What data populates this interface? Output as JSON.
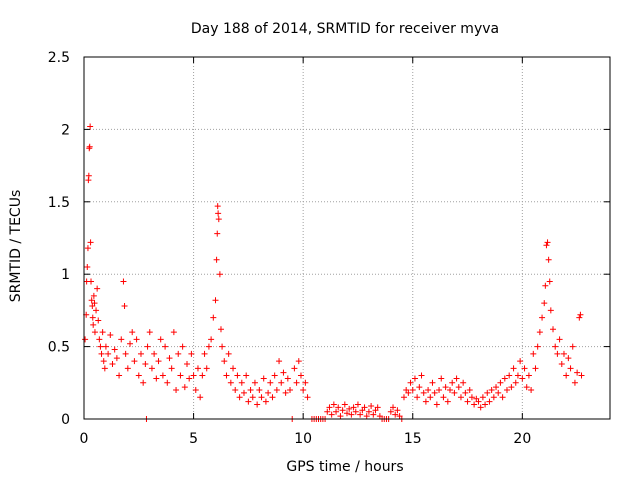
{
  "chart_data": {
    "type": "scatter",
    "title": "Day 188 of 2014, SRMTID for receiver myva",
    "xlabel": "GPS time / hours",
    "ylabel": "SRMTID / TECUs",
    "xlim": [
      0,
      24
    ],
    "ylim": [
      0,
      2.5
    ],
    "xticks": [
      0,
      5,
      10,
      15,
      20
    ],
    "xtick_labels": [
      "0",
      "5",
      "10",
      "15",
      "20"
    ],
    "yticks": [
      0,
      0.5,
      1,
      1.5,
      2,
      2.5
    ],
    "ytick_labels": [
      "0",
      "0.5",
      "1",
      "1.5",
      "2",
      "2.5"
    ],
    "grid": true,
    "marker": "+",
    "series": [
      {
        "name": "SRMTID",
        "color": "#ff0000",
        "data": [
          [
            0.05,
            0.55
          ],
          [
            0.1,
            0.72
          ],
          [
            0.12,
            0.95
          ],
          [
            0.15,
            1.05
          ],
          [
            0.18,
            1.18
          ],
          [
            0.2,
            1.65
          ],
          [
            0.22,
            1.68
          ],
          [
            0.24,
            1.87
          ],
          [
            0.26,
            1.88
          ],
          [
            0.28,
            2.02
          ],
          [
            0.3,
            1.22
          ],
          [
            0.32,
            0.95
          ],
          [
            0.35,
            0.82
          ],
          [
            0.38,
            0.78
          ],
          [
            0.4,
            0.7
          ],
          [
            0.42,
            0.65
          ],
          [
            0.45,
            0.85
          ],
          [
            0.48,
            0.8
          ],
          [
            0.5,
            0.6
          ],
          [
            0.55,
            0.75
          ],
          [
            0.6,
            0.9
          ],
          [
            0.65,
            0.68
          ],
          [
            0.7,
            0.55
          ],
          [
            0.75,
            0.5
          ],
          [
            0.8,
            0.45
          ],
          [
            0.85,
            0.6
          ],
          [
            0.9,
            0.4
          ],
          [
            0.95,
            0.35
          ],
          [
            1.0,
            0.5
          ],
          [
            1.1,
            0.45
          ],
          [
            1.2,
            0.58
          ],
          [
            1.3,
            0.38
          ],
          [
            1.4,
            0.48
          ],
          [
            1.5,
            0.42
          ],
          [
            1.6,
            0.3
          ],
          [
            1.7,
            0.55
          ],
          [
            1.8,
            0.95
          ],
          [
            1.85,
            0.78
          ],
          [
            1.9,
            0.45
          ],
          [
            2.0,
            0.35
          ],
          [
            2.1,
            0.52
          ],
          [
            2.2,
            0.6
          ],
          [
            2.3,
            0.4
          ],
          [
            2.4,
            0.55
          ],
          [
            2.5,
            0.3
          ],
          [
            2.6,
            0.45
          ],
          [
            2.7,
            0.25
          ],
          [
            2.8,
            0.38
          ],
          [
            2.85,
            0.0
          ],
          [
            2.9,
            0.5
          ],
          [
            3.0,
            0.6
          ],
          [
            3.1,
            0.35
          ],
          [
            3.2,
            0.45
          ],
          [
            3.3,
            0.28
          ],
          [
            3.4,
            0.4
          ],
          [
            3.5,
            0.55
          ],
          [
            3.6,
            0.3
          ],
          [
            3.7,
            0.5
          ],
          [
            3.8,
            0.25
          ],
          [
            3.9,
            0.42
          ],
          [
            4.0,
            0.35
          ],
          [
            4.1,
            0.6
          ],
          [
            4.2,
            0.2
          ],
          [
            4.3,
            0.45
          ],
          [
            4.4,
            0.3
          ],
          [
            4.5,
            0.5
          ],
          [
            4.6,
            0.22
          ],
          [
            4.7,
            0.38
          ],
          [
            4.8,
            0.28
          ],
          [
            4.9,
            0.45
          ],
          [
            5.0,
            0.3
          ],
          [
            5.1,
            0.2
          ],
          [
            5.2,
            0.35
          ],
          [
            5.3,
            0.15
          ],
          [
            5.4,
            0.3
          ],
          [
            5.5,
            0.45
          ],
          [
            5.6,
            0.35
          ],
          [
            5.7,
            0.5
          ],
          [
            5.8,
            0.55
          ],
          [
            5.9,
            0.7
          ],
          [
            6.0,
            0.82
          ],
          [
            6.05,
            1.1
          ],
          [
            6.08,
            1.28
          ],
          [
            6.1,
            1.47
          ],
          [
            6.12,
            1.42
          ],
          [
            6.15,
            1.38
          ],
          [
            6.2,
            1.0
          ],
          [
            6.25,
            0.62
          ],
          [
            6.3,
            0.5
          ],
          [
            6.4,
            0.4
          ],
          [
            6.5,
            0.3
          ],
          [
            6.6,
            0.45
          ],
          [
            6.7,
            0.25
          ],
          [
            6.8,
            0.35
          ],
          [
            6.9,
            0.2
          ],
          [
            7.0,
            0.3
          ],
          [
            7.1,
            0.15
          ],
          [
            7.2,
            0.25
          ],
          [
            7.3,
            0.18
          ],
          [
            7.4,
            0.3
          ],
          [
            7.5,
            0.12
          ],
          [
            7.6,
            0.2
          ],
          [
            7.7,
            0.15
          ],
          [
            7.8,
            0.25
          ],
          [
            7.9,
            0.1
          ],
          [
            8.0,
            0.2
          ],
          [
            8.1,
            0.15
          ],
          [
            8.2,
            0.28
          ],
          [
            8.3,
            0.12
          ],
          [
            8.4,
            0.18
          ],
          [
            8.5,
            0.25
          ],
          [
            8.6,
            0.15
          ],
          [
            8.7,
            0.3
          ],
          [
            8.8,
            0.2
          ],
          [
            8.9,
            0.4
          ],
          [
            9.0,
            0.25
          ],
          [
            9.1,
            0.32
          ],
          [
            9.2,
            0.18
          ],
          [
            9.3,
            0.28
          ],
          [
            9.4,
            0.2
          ],
          [
            9.5,
            0.0
          ],
          [
            9.6,
            0.35
          ],
          [
            9.7,
            0.25
          ],
          [
            9.8,
            0.4
          ],
          [
            9.9,
            0.3
          ],
          [
            10.0,
            0.2
          ],
          [
            10.1,
            0.25
          ],
          [
            10.2,
            0.15
          ],
          [
            10.4,
            0.0
          ],
          [
            10.5,
            0.0
          ],
          [
            10.6,
            0.0
          ],
          [
            10.7,
            0.0
          ],
          [
            10.8,
            0.0
          ],
          [
            10.9,
            0.0
          ],
          [
            11.0,
            0.0
          ],
          [
            11.1,
            0.05
          ],
          [
            11.2,
            0.08
          ],
          [
            11.3,
            0.03
          ],
          [
            11.4,
            0.1
          ],
          [
            11.5,
            0.05
          ],
          [
            11.6,
            0.08
          ],
          [
            11.7,
            0.02
          ],
          [
            11.8,
            0.06
          ],
          [
            11.9,
            0.1
          ],
          [
            12.0,
            0.04
          ],
          [
            12.1,
            0.07
          ],
          [
            12.2,
            0.03
          ],
          [
            12.3,
            0.08
          ],
          [
            12.4,
            0.05
          ],
          [
            12.5,
            0.1
          ],
          [
            12.6,
            0.03
          ],
          [
            12.7,
            0.06
          ],
          [
            12.8,
            0.08
          ],
          [
            12.9,
            0.02
          ],
          [
            13.0,
            0.05
          ],
          [
            13.1,
            0.09
          ],
          [
            13.2,
            0.03
          ],
          [
            13.3,
            0.06
          ],
          [
            13.4,
            0.08
          ],
          [
            13.5,
            0.02
          ],
          [
            13.6,
            0.0
          ],
          [
            13.7,
            0.0
          ],
          [
            13.8,
            0.0
          ],
          [
            13.9,
            0.0
          ],
          [
            14.0,
            0.05
          ],
          [
            14.1,
            0.08
          ],
          [
            14.2,
            0.03
          ],
          [
            14.3,
            0.06
          ],
          [
            14.4,
            0.02
          ],
          [
            14.5,
            0.0
          ],
          [
            14.6,
            0.15
          ],
          [
            14.7,
            0.2
          ],
          [
            14.8,
            0.18
          ],
          [
            14.9,
            0.25
          ],
          [
            15.0,
            0.2
          ],
          [
            15.1,
            0.28
          ],
          [
            15.2,
            0.15
          ],
          [
            15.3,
            0.22
          ],
          [
            15.4,
            0.3
          ],
          [
            15.5,
            0.18
          ],
          [
            15.6,
            0.12
          ],
          [
            15.7,
            0.2
          ],
          [
            15.8,
            0.15
          ],
          [
            15.9,
            0.25
          ],
          [
            16.0,
            0.18
          ],
          [
            16.1,
            0.1
          ],
          [
            16.2,
            0.2
          ],
          [
            16.3,
            0.28
          ],
          [
            16.4,
            0.15
          ],
          [
            16.5,
            0.22
          ],
          [
            16.6,
            0.12
          ],
          [
            16.7,
            0.2
          ],
          [
            16.8,
            0.25
          ],
          [
            16.9,
            0.18
          ],
          [
            17.0,
            0.28
          ],
          [
            17.1,
            0.22
          ],
          [
            17.2,
            0.15
          ],
          [
            17.3,
            0.25
          ],
          [
            17.4,
            0.18
          ],
          [
            17.5,
            0.12
          ],
          [
            17.6,
            0.2
          ],
          [
            17.7,
            0.15
          ],
          [
            17.8,
            0.1
          ],
          [
            17.9,
            0.14
          ],
          [
            18.0,
            0.12
          ],
          [
            18.1,
            0.08
          ],
          [
            18.2,
            0.15
          ],
          [
            18.3,
            0.1
          ],
          [
            18.4,
            0.18
          ],
          [
            18.5,
            0.12
          ],
          [
            18.6,
            0.2
          ],
          [
            18.7,
            0.15
          ],
          [
            18.8,
            0.22
          ],
          [
            18.9,
            0.18
          ],
          [
            19.0,
            0.25
          ],
          [
            19.1,
            0.15
          ],
          [
            19.2,
            0.28
          ],
          [
            19.3,
            0.2
          ],
          [
            19.4,
            0.3
          ],
          [
            19.5,
            0.22
          ],
          [
            19.6,
            0.35
          ],
          [
            19.7,
            0.25
          ],
          [
            19.8,
            0.3
          ],
          [
            19.9,
            0.4
          ],
          [
            20.0,
            0.28
          ],
          [
            20.1,
            0.35
          ],
          [
            20.2,
            0.22
          ],
          [
            20.3,
            0.3
          ],
          [
            20.4,
            0.2
          ],
          [
            20.5,
            0.45
          ],
          [
            20.6,
            0.35
          ],
          [
            20.7,
            0.5
          ],
          [
            20.8,
            0.6
          ],
          [
            20.9,
            0.7
          ],
          [
            21.0,
            0.8
          ],
          [
            21.05,
            0.92
          ],
          [
            21.1,
            1.2
          ],
          [
            21.15,
            1.22
          ],
          [
            21.2,
            1.1
          ],
          [
            21.25,
            0.95
          ],
          [
            21.3,
            0.75
          ],
          [
            21.4,
            0.62
          ],
          [
            21.5,
            0.5
          ],
          [
            21.6,
            0.45
          ],
          [
            21.7,
            0.55
          ],
          [
            21.8,
            0.38
          ],
          [
            21.9,
            0.45
          ],
          [
            22.0,
            0.3
          ],
          [
            22.1,
            0.42
          ],
          [
            22.2,
            0.35
          ],
          [
            22.3,
            0.5
          ],
          [
            22.4,
            0.25
          ],
          [
            22.5,
            0.32
          ],
          [
            22.6,
            0.7
          ],
          [
            22.65,
            0.72
          ],
          [
            22.7,
            0.3
          ]
        ]
      }
    ]
  }
}
